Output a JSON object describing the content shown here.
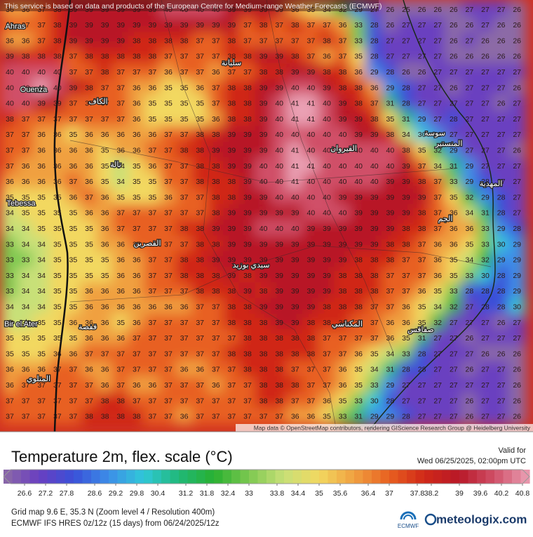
{
  "header": {
    "notice": "This service is based on data and products of the European Centre for Medium-range Weather Forecasts (ECMWF)"
  },
  "map": {
    "lim": [
      26,
      41
    ],
    "colors": [
      "#8c6aa6",
      "#6a3fc0",
      "#3a50d8",
      "#3c8ee8",
      "#30c8d8",
      "#20b878",
      "#28b030",
      "#7cc850",
      "#c8e078",
      "#f2d860",
      "#f0a040",
      "#e86020",
      "#d02818",
      "#b81828",
      "#d05068",
      "#eaa0b4"
    ],
    "grid": [
      [
        36,
        36,
        37,
        38,
        39,
        39,
        39,
        39,
        39,
        39,
        40,
        40,
        40,
        40,
        39,
        39,
        39,
        39,
        36,
        35,
        34,
        32,
        29,
        27,
        26,
        25,
        26,
        26,
        26,
        27,
        27,
        27,
        26
      ],
      [
        37,
        37,
        37,
        38,
        39,
        39,
        39,
        39,
        39,
        39,
        39,
        39,
        39,
        39,
        39,
        37,
        38,
        37,
        38,
        37,
        37,
        36,
        33,
        28,
        26,
        27,
        27,
        27,
        26,
        26,
        27,
        26,
        26
      ],
      [
        36,
        36,
        37,
        38,
        39,
        39,
        39,
        39,
        38,
        38,
        38,
        38,
        37,
        37,
        38,
        37,
        37,
        37,
        37,
        37,
        38,
        37,
        33,
        28,
        27,
        27,
        27,
        27,
        26,
        27,
        26,
        26,
        26
      ],
      [
        39,
        38,
        38,
        38,
        37,
        38,
        38,
        38,
        38,
        38,
        37,
        37,
        37,
        37,
        38,
        38,
        39,
        39,
        38,
        37,
        36,
        37,
        35,
        28,
        27,
        27,
        27,
        27,
        26,
        26,
        26,
        26,
        26
      ],
      [
        40,
        40,
        40,
        40,
        37,
        37,
        38,
        37,
        37,
        37,
        36,
        37,
        37,
        36,
        37,
        37,
        38,
        38,
        39,
        39,
        38,
        38,
        36,
        29,
        28,
        26,
        26,
        27,
        27,
        27,
        27,
        27,
        27
      ],
      [
        40,
        40,
        41,
        40,
        39,
        38,
        37,
        37,
        36,
        36,
        35,
        35,
        36,
        37,
        38,
        38,
        39,
        39,
        40,
        40,
        39,
        38,
        38,
        36,
        29,
        28,
        27,
        27,
        26,
        27,
        27,
        27,
        26
      ],
      [
        40,
        40,
        39,
        39,
        37,
        37,
        37,
        37,
        36,
        35,
        35,
        35,
        35,
        37,
        38,
        38,
        39,
        40,
        41,
        41,
        40,
        39,
        38,
        37,
        31,
        28,
        27,
        27,
        27,
        27,
        27,
        26,
        27
      ],
      [
        38,
        37,
        37,
        37,
        37,
        37,
        37,
        37,
        36,
        35,
        35,
        35,
        35,
        36,
        38,
        38,
        39,
        40,
        41,
        41,
        40,
        39,
        39,
        38,
        35,
        31,
        29,
        27,
        28,
        27,
        27,
        27,
        27
      ],
      [
        37,
        37,
        36,
        36,
        35,
        36,
        36,
        36,
        36,
        36,
        37,
        37,
        38,
        38,
        39,
        39,
        39,
        40,
        40,
        40,
        40,
        40,
        39,
        39,
        38,
        34,
        30,
        29,
        27,
        27,
        27,
        27,
        27
      ],
      [
        37,
        37,
        36,
        36,
        36,
        36,
        35,
        36,
        36,
        37,
        37,
        38,
        38,
        39,
        39,
        39,
        39,
        40,
        41,
        40,
        40,
        40,
        40,
        40,
        40,
        38,
        35,
        32,
        29,
        27,
        27,
        27,
        26
      ],
      [
        37,
        36,
        36,
        36,
        36,
        36,
        35,
        34,
        35,
        36,
        37,
        37,
        38,
        38,
        39,
        39,
        40,
        40,
        41,
        41,
        40,
        40,
        40,
        40,
        40,
        39,
        37,
        34,
        31,
        29,
        27,
        27,
        27
      ],
      [
        36,
        36,
        36,
        36,
        37,
        36,
        35,
        34,
        35,
        35,
        37,
        37,
        38,
        38,
        38,
        39,
        40,
        40,
        41,
        40,
        40,
        40,
        40,
        40,
        39,
        39,
        38,
        37,
        33,
        29,
        28,
        27,
        27
      ],
      [
        35,
        35,
        35,
        35,
        36,
        37,
        36,
        35,
        35,
        35,
        36,
        37,
        37,
        38,
        38,
        39,
        39,
        40,
        40,
        40,
        40,
        39,
        39,
        39,
        39,
        39,
        39,
        37,
        35,
        32,
        29,
        28,
        27
      ],
      [
        34,
        35,
        35,
        35,
        35,
        36,
        36,
        37,
        37,
        37,
        37,
        37,
        37,
        38,
        39,
        39,
        39,
        39,
        39,
        40,
        40,
        40,
        39,
        39,
        39,
        39,
        38,
        37,
        36,
        34,
        31,
        28,
        27
      ],
      [
        34,
        34,
        35,
        35,
        35,
        35,
        36,
        37,
        37,
        37,
        37,
        38,
        38,
        39,
        39,
        39,
        40,
        40,
        40,
        39,
        39,
        39,
        39,
        39,
        39,
        38,
        38,
        37,
        36,
        36,
        33,
        29,
        28
      ],
      [
        33,
        34,
        34,
        35,
        35,
        35,
        36,
        36,
        37,
        37,
        37,
        37,
        38,
        38,
        39,
        39,
        39,
        39,
        39,
        39,
        39,
        39,
        39,
        39,
        38,
        38,
        37,
        36,
        36,
        35,
        33,
        30,
        29
      ],
      [
        33,
        33,
        34,
        35,
        35,
        35,
        35,
        36,
        36,
        37,
        37,
        38,
        38,
        39,
        39,
        39,
        39,
        39,
        39,
        39,
        39,
        39,
        38,
        38,
        38,
        37,
        37,
        36,
        35,
        34,
        32,
        29,
        29
      ],
      [
        33,
        34,
        34,
        35,
        35,
        35,
        35,
        36,
        36,
        37,
        37,
        38,
        38,
        38,
        39,
        38,
        39,
        39,
        39,
        39,
        39,
        38,
        38,
        38,
        37,
        37,
        37,
        36,
        35,
        33,
        30,
        28,
        29
      ],
      [
        33,
        34,
        34,
        35,
        35,
        36,
        36,
        36,
        36,
        37,
        37,
        37,
        38,
        38,
        38,
        39,
        38,
        39,
        39,
        39,
        39,
        38,
        38,
        38,
        37,
        37,
        36,
        35,
        33,
        28,
        28,
        28,
        29
      ],
      [
        34,
        34,
        34,
        35,
        35,
        36,
        36,
        36,
        36,
        36,
        36,
        36,
        37,
        37,
        38,
        38,
        39,
        39,
        39,
        39,
        38,
        38,
        38,
        37,
        37,
        36,
        35,
        34,
        32,
        27,
        28,
        28,
        30
      ],
      [
        34,
        34,
        35,
        35,
        36,
        36,
        36,
        35,
        36,
        37,
        37,
        37,
        37,
        37,
        38,
        38,
        38,
        39,
        39,
        38,
        38,
        38,
        37,
        37,
        36,
        36,
        35,
        32,
        27,
        27,
        27,
        26,
        27
      ],
      [
        35,
        35,
        35,
        35,
        35,
        36,
        36,
        36,
        37,
        37,
        37,
        37,
        37,
        37,
        37,
        38,
        38,
        38,
        38,
        38,
        37,
        37,
        37,
        37,
        36,
        35,
        31,
        27,
        27,
        26,
        27,
        27,
        27
      ],
      [
        35,
        35,
        35,
        36,
        36,
        37,
        37,
        37,
        37,
        37,
        37,
        37,
        37,
        37,
        38,
        38,
        38,
        38,
        38,
        38,
        37,
        37,
        36,
        35,
        34,
        33,
        28,
        27,
        27,
        27,
        26,
        26,
        26
      ],
      [
        36,
        36,
        36,
        37,
        37,
        36,
        36,
        37,
        37,
        37,
        37,
        36,
        36,
        37,
        37,
        38,
        38,
        38,
        37,
        37,
        37,
        36,
        35,
        34,
        31,
        28,
        28,
        27,
        27,
        26,
        27,
        27,
        26
      ],
      [
        36,
        37,
        37,
        37,
        37,
        37,
        36,
        37,
        36,
        36,
        37,
        37,
        37,
        36,
        37,
        37,
        38,
        38,
        38,
        37,
        37,
        36,
        35,
        33,
        29,
        27,
        27,
        27,
        27,
        27,
        27,
        27,
        26
      ],
      [
        37,
        37,
        37,
        37,
        37,
        37,
        38,
        38,
        37,
        37,
        37,
        37,
        37,
        37,
        37,
        37,
        38,
        38,
        37,
        37,
        36,
        35,
        33,
        30,
        28,
        27,
        27,
        27,
        27,
        26,
        27,
        27,
        26
      ],
      [
        37,
        37,
        37,
        37,
        37,
        38,
        38,
        38,
        38,
        37,
        37,
        36,
        37,
        37,
        37,
        37,
        37,
        37,
        36,
        36,
        35,
        33,
        31,
        29,
        29,
        28,
        27,
        27,
        27,
        26,
        27,
        27,
        26
      ]
    ],
    "places": [
      "Ahras",
      "Ouenza",
      "Tebessa",
      "Bir el Ater",
      "سليانة",
      "الكاف",
      "تالة",
      "القيروان",
      "سوسة",
      "المنستير",
      "المهدية",
      "الجم",
      "القصرين",
      "سيدي بوزيد",
      "المكناسي",
      "صفاقس",
      "قفصة",
      "المتلوي"
    ],
    "attribution": "Map data © OpenStreetMap contributors, rendering GIScience Research Group @ Heidelberg University"
  },
  "legend": {
    "title": "Temperature 2m, flex. scale (°C)",
    "valid_label": "Valid for",
    "valid_time": "Wed 06/25/2025, 02:00pm UTC",
    "ticks": [
      26.6,
      27.2,
      27.8,
      28.6,
      29.2,
      29.8,
      30.4,
      31.2,
      31.8,
      32.4,
      33,
      33.8,
      34.4,
      35,
      35.6,
      36.4,
      37,
      37.8,
      38.2,
      39,
      39.6,
      40.2,
      40.8
    ]
  },
  "footer": {
    "grid_info": "Grid map 9.6 E, 35.3 N (Zoom level 4 / Resolution 400m)",
    "model_info": "ECMWF IFS HRES 0z/12z (15 days) from 06/24/2025/12z",
    "ecmwf": "ECMWF",
    "brand": "meteologix.com"
  }
}
